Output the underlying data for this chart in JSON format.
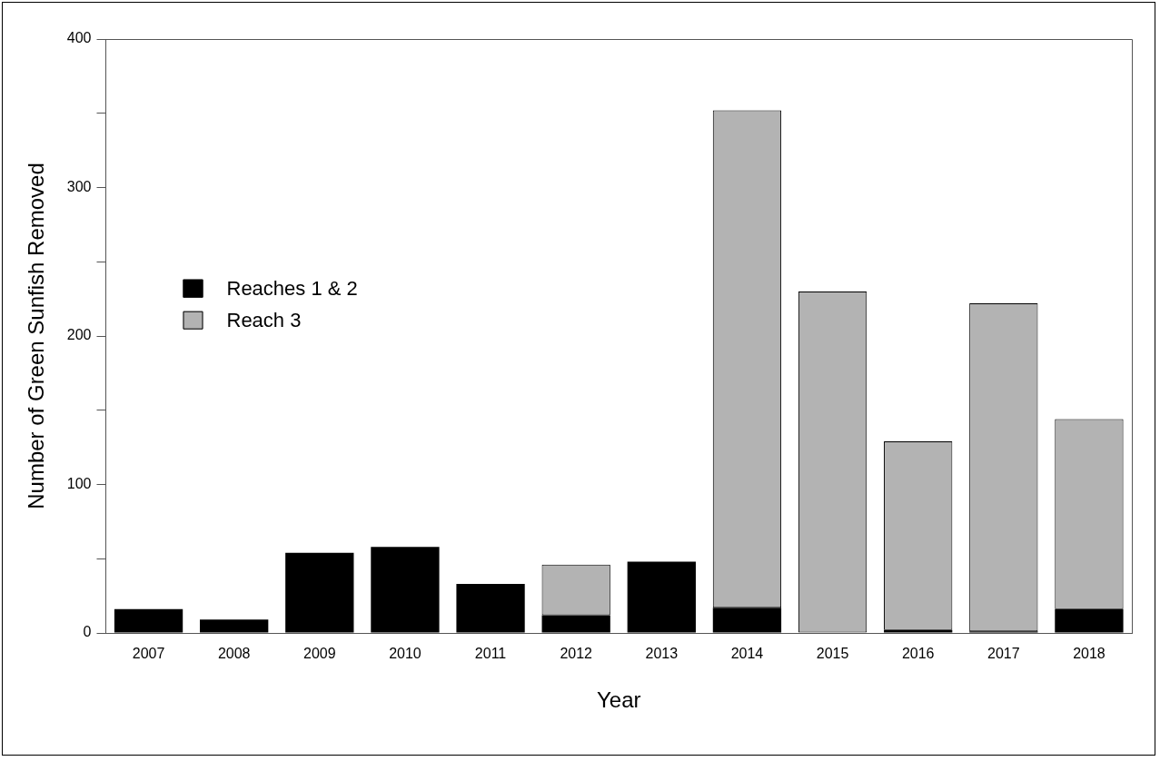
{
  "chart_data": {
    "type": "bar",
    "stacked": true,
    "xlabel": "Year",
    "ylabel": "Number of Green Sunfish Removed",
    "categories": [
      "2007",
      "2008",
      "2009",
      "2010",
      "2011",
      "2012",
      "2013",
      "2014",
      "2015",
      "2016",
      "2017",
      "2018"
    ],
    "series": [
      {
        "name": "Reaches 1 & 2",
        "color": "#000000",
        "values": [
          16,
          9,
          54,
          58,
          33,
          12,
          48,
          17,
          0,
          2,
          1,
          16
        ]
      },
      {
        "name": "Reach 3",
        "color": "#b3b3b3",
        "values": [
          0,
          0,
          0,
          0,
          0,
          34,
          0,
          335,
          230,
          127,
          221,
          128
        ]
      }
    ],
    "ylim": [
      0,
      400
    ],
    "yticks": [
      0,
      {
        "value": 50,
        "label": null
      },
      100,
      {
        "value": 150,
        "label": null
      },
      200,
      {
        "value": 250,
        "label": null
      },
      300,
      {
        "value": 350,
        "label": null
      },
      400
    ],
    "grid": false,
    "legend": "left"
  }
}
